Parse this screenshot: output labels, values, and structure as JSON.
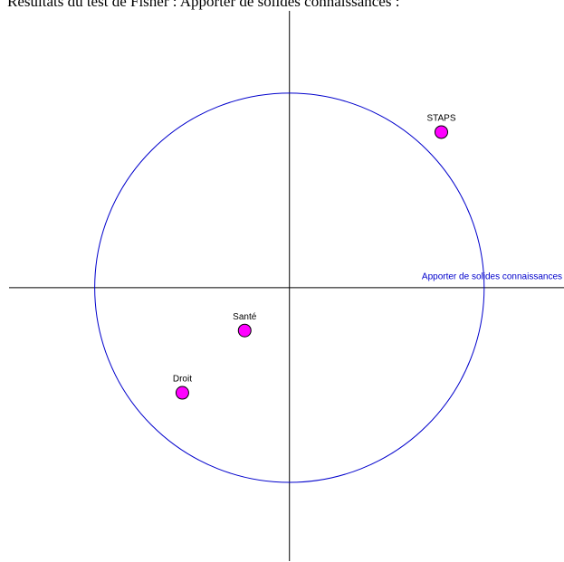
{
  "chart_data": {
    "type": "scatter",
    "title": "Résultats du test de Fisher : Apporter de solides connaissances :",
    "x_label": "Apporter de solides connaissances",
    "categories": [
      "STAPS",
      "Santé",
      "Droit"
    ],
    "x": [
      0.78,
      -0.23,
      -0.55
    ],
    "values": [
      0.8,
      -0.22,
      -0.54
    ],
    "color": "#ff00ff",
    "circle_color": "#0000cc",
    "unit_circle": true,
    "xlim": [
      -1.44,
      1.41
    ],
    "ylim": [
      -1.405,
      1.423
    ]
  }
}
